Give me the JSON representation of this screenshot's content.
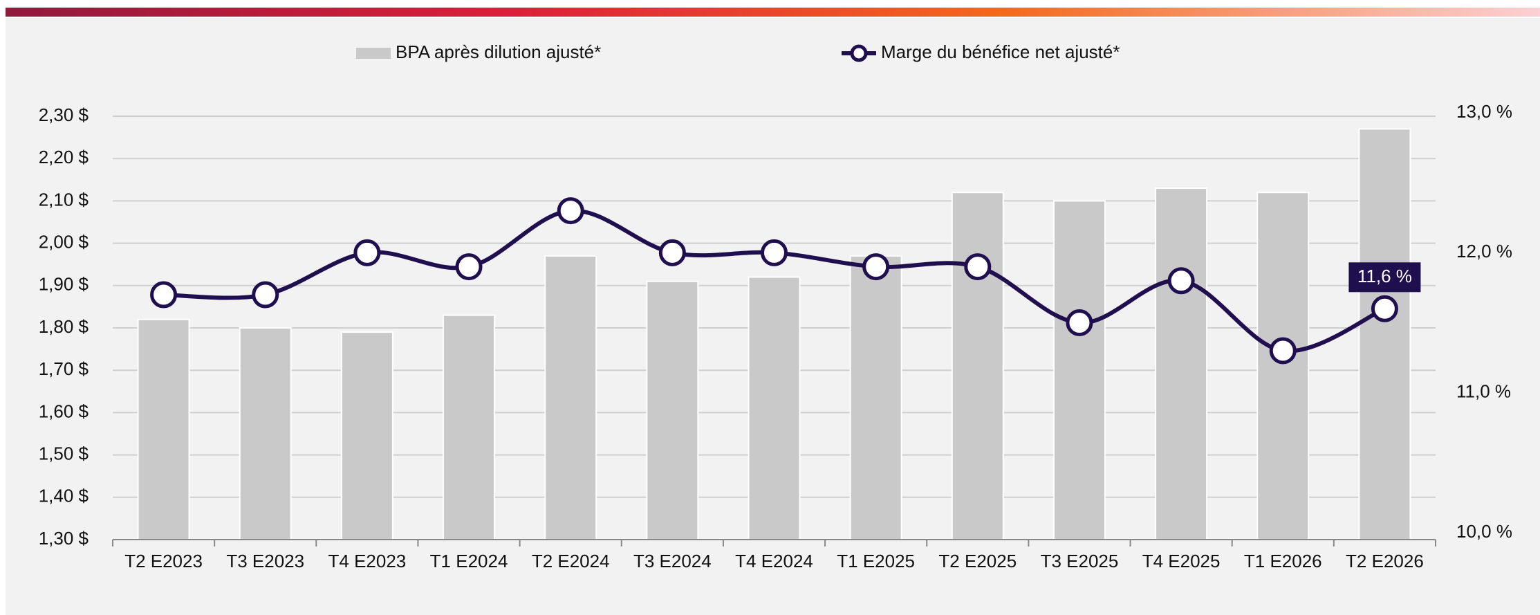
{
  "chart_data": {
    "type": "bar",
    "categories": [
      "T2 E2023",
      "T3 E2023",
      "T4 E2023",
      "T1 E2024",
      "T2 E2024",
      "T3 E2024",
      "T4 E2024",
      "T1 E2025",
      "T2 E2025",
      "T3 E2025",
      "T4 E2025",
      "T1 E2026",
      "T2 E2026"
    ],
    "series": [
      {
        "name": "BPA après dilution ajusté*",
        "type": "bar",
        "color": "#c9c9c9",
        "values": [
          1.82,
          1.8,
          1.79,
          1.83,
          1.97,
          1.91,
          1.92,
          1.97,
          2.12,
          2.1,
          2.13,
          2.12,
          2.27
        ]
      },
      {
        "name": "Marge du bénéfice net ajusté*",
        "type": "line",
        "color": "#1f0f4f",
        "axis": "y2",
        "values": [
          11.7,
          11.7,
          12.0,
          11.9,
          12.3,
          12.0,
          12.0,
          11.9,
          11.9,
          11.5,
          11.8,
          11.3,
          11.6
        ],
        "value_labels": [
          null,
          null,
          null,
          null,
          null,
          null,
          null,
          null,
          null,
          null,
          null,
          null,
          "11,6 %"
        ]
      }
    ],
    "ylim": [
      1.3,
      2.3
    ],
    "yticks": [
      {
        "value": 1.3,
        "label": "1,30 $"
      },
      {
        "value": 1.4,
        "label": "1,40 $"
      },
      {
        "value": 1.5,
        "label": "1,50 $"
      },
      {
        "value": 1.6,
        "label": "1,60 $"
      },
      {
        "value": 1.7,
        "label": "1,70 $"
      },
      {
        "value": 1.8,
        "label": "1,80 $"
      },
      {
        "value": 1.9,
        "label": "1,90 $"
      },
      {
        "value": 2.0,
        "label": "2,00 $"
      },
      {
        "value": 2.1,
        "label": "2,10 $"
      },
      {
        "value": 2.2,
        "label": "2,20 $"
      },
      {
        "value": 2.3,
        "label": "2,30 $"
      }
    ],
    "y2lim": [
      10.0,
      13.0
    ],
    "y2ticks": [
      {
        "value": 10.0,
        "label": "10,0 %"
      },
      {
        "value": 11.0,
        "label": "11,0 %"
      },
      {
        "value": 12.0,
        "label": "12,0 %"
      },
      {
        "value": 13.0,
        "label": "13,0 %"
      }
    ],
    "grid": true,
    "legend": "top"
  }
}
